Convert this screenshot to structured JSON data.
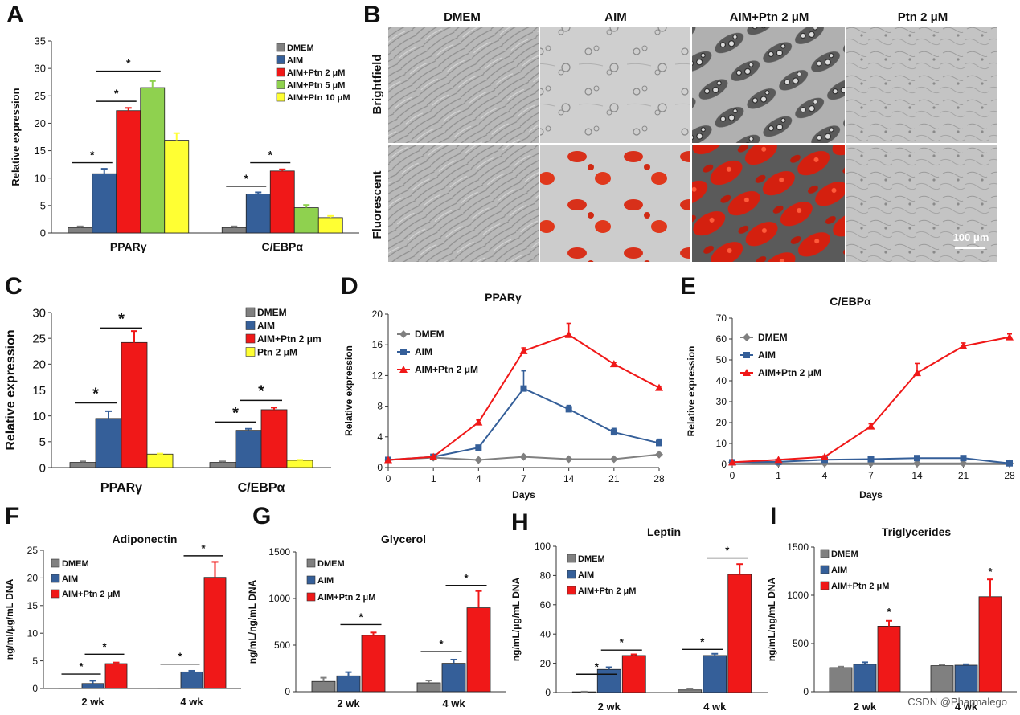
{
  "colors": {
    "DMEM": "#808080",
    "AIM": "#355f99",
    "AIM+Ptn 2": "#f01818",
    "AIM+Ptn 5": "#8fd14f",
    "AIM+Ptn 10": "#ffff33",
    "Ptn 2": "#ffff33"
  },
  "panel_B": {
    "letter": "B",
    "columns": [
      "DMEM",
      "AIM",
      "AIM+Ptn 2 μM",
      "Ptn 2 μM"
    ],
    "rows": [
      "Brightfield",
      "Fluorescent"
    ],
    "scale_bar": "100 μm"
  },
  "watermark": "CSDN @Pharmalego",
  "chart_data": [
    {
      "id": "A",
      "letter": "A",
      "type": "bar",
      "title": "",
      "xlabel": "",
      "ylabel": "Relative expression",
      "ylim": [
        0,
        35
      ],
      "yticks": [
        0,
        5,
        10,
        15,
        20,
        25,
        30,
        35
      ],
      "categories": [
        "PPARγ",
        "C/EBPα"
      ],
      "series": [
        {
          "name": "DMEM",
          "color_key": "DMEM",
          "values": [
            1,
            1
          ],
          "errors": [
            0.2,
            0.2
          ]
        },
        {
          "name": "AIM",
          "color_key": "AIM",
          "values": [
            10.8,
            7.1
          ],
          "errors": [
            0.9,
            0.3
          ]
        },
        {
          "name": "AIM+Ptn 2 μM",
          "color_key": "AIM+Ptn 2",
          "values": [
            22.3,
            11.3
          ],
          "errors": [
            0.5,
            0.3
          ]
        },
        {
          "name": "AIM+Ptn 5 μM",
          "color_key": "AIM+Ptn 5",
          "values": [
            26.5,
            4.6
          ],
          "errors": [
            1.2,
            0.5
          ]
        },
        {
          "name": "AIM+Ptn 10 μM",
          "color_key": "AIM+Ptn 10",
          "values": [
            16.9,
            2.8
          ],
          "errors": [
            1.3,
            0.3
          ]
        }
      ],
      "significance": [
        {
          "cat": 0,
          "from": 0,
          "to": 1,
          "y": 12.8
        },
        {
          "cat": 0,
          "from": 1,
          "to": 2,
          "y": 24.0
        },
        {
          "cat": 0,
          "from": 1,
          "to": 3,
          "y": 29.5
        },
        {
          "cat": 1,
          "from": 0,
          "to": 1,
          "y": 8.5
        },
        {
          "cat": 1,
          "from": 1,
          "to": 2,
          "y": 12.8
        }
      ],
      "legend": "top-right",
      "star_label": "*"
    },
    {
      "id": "C",
      "letter": "C",
      "type": "bar",
      "title": "",
      "xlabel": "",
      "ylabel": "Relative expression",
      "ylim": [
        0,
        30
      ],
      "yticks": [
        0,
        5,
        10,
        15,
        20,
        25,
        30
      ],
      "categories": [
        "PPARγ",
        "C/EBPα"
      ],
      "series": [
        {
          "name": "DMEM",
          "color_key": "DMEM",
          "values": [
            1,
            1
          ],
          "errors": [
            0.2,
            0.2
          ]
        },
        {
          "name": "AIM",
          "color_key": "AIM",
          "values": [
            9.5,
            7.2
          ],
          "errors": [
            1.4,
            0.3
          ]
        },
        {
          "name": "AIM+Ptn 2 μm",
          "color_key": "AIM+Ptn 2",
          "values": [
            24.2,
            11.2
          ],
          "errors": [
            2.2,
            0.4
          ]
        },
        {
          "name": "Ptn 2 μM",
          "color_key": "Ptn 2",
          "values": [
            2.6,
            1.4
          ],
          "errors": [
            0.1,
            0.1
          ]
        }
      ],
      "significance": [
        {
          "cat": 0,
          "from": 0,
          "to": 1,
          "y": 12.5
        },
        {
          "cat": 0,
          "from": 1,
          "to": 2,
          "y": 27.0
        },
        {
          "cat": 1,
          "from": 0,
          "to": 1,
          "y": 8.8
        },
        {
          "cat": 1,
          "from": 1,
          "to": 2,
          "y": 13.0
        }
      ],
      "legend": "top-right",
      "star_label": "*"
    },
    {
      "id": "D",
      "letter": "D",
      "type": "line",
      "title": "PPARγ",
      "xlabel": "Days",
      "ylabel": "Relative expression",
      "x": [
        "0",
        "1",
        "4",
        "7",
        "14",
        "21",
        "28"
      ],
      "ylim": [
        0,
        20
      ],
      "yticks": [
        0,
        4,
        8,
        12,
        16,
        20
      ],
      "series": [
        {
          "name": "DMEM",
          "color_key": "DMEM",
          "marker": "diamond",
          "values": [
            1,
            1.3,
            1.0,
            1.4,
            1.1,
            1.1,
            1.7
          ],
          "errors": [
            0,
            0,
            0,
            0,
            0,
            0,
            0
          ]
        },
        {
          "name": "AIM",
          "color_key": "AIM",
          "marker": "square",
          "values": [
            1,
            1.4,
            2.6,
            10.3,
            7.6,
            4.6,
            3.2
          ],
          "errors": [
            0,
            0,
            0.2,
            2.3,
            0.5,
            0.5,
            0.5
          ]
        },
        {
          "name": "AIM+Ptn 2 μM",
          "color_key": "AIM+Ptn 2",
          "marker": "triangle",
          "values": [
            1,
            1.4,
            5.9,
            15.2,
            17.3,
            13.5,
            10.4
          ],
          "errors": [
            0,
            0,
            0.3,
            0.4,
            1.5,
            0.2,
            0.2
          ]
        }
      ],
      "legend": "top-left"
    },
    {
      "id": "E",
      "letter": "E",
      "type": "line",
      "title": "C/EBPα",
      "xlabel": "Days",
      "ylabel": "Relative expression",
      "x": [
        "0",
        "1",
        "4",
        "7",
        "14",
        "21",
        "28"
      ],
      "ylim": [
        0,
        70
      ],
      "yticks": [
        0,
        10,
        20,
        30,
        40,
        50,
        60,
        70
      ],
      "series": [
        {
          "name": "DMEM",
          "color_key": "DMEM",
          "marker": "diamond",
          "values": [
            1,
            0.5,
            0.5,
            0.5,
            0.5,
            0.5,
            0.5
          ],
          "errors": [
            0,
            0,
            0,
            0,
            0,
            0,
            0
          ]
        },
        {
          "name": "AIM",
          "color_key": "AIM",
          "marker": "square",
          "values": [
            1,
            1.2,
            2.2,
            2.5,
            3.0,
            3.0,
            0.5
          ],
          "errors": [
            0,
            0,
            0,
            0,
            0,
            0,
            0
          ]
        },
        {
          "name": "AIM+Ptn 2 μM",
          "color_key": "AIM+Ptn 2",
          "marker": "triangle",
          "values": [
            1,
            2.2,
            3.6,
            18.2,
            43.8,
            56.6,
            60.9
          ],
          "errors": [
            0,
            0,
            0.5,
            1.2,
            4.5,
            1.5,
            1.5
          ]
        }
      ],
      "legend": "top-left"
    },
    {
      "id": "F",
      "letter": "F",
      "type": "bar",
      "title": "Adiponectin",
      "xlabel": "",
      "ylabel": "ng/ml/μg/mL DNA",
      "ylim": [
        0,
        25
      ],
      "yticks": [
        0,
        5,
        10,
        15,
        20,
        25
      ],
      "categories": [
        "2 wk",
        "4 wk"
      ],
      "series": [
        {
          "name": "DMEM",
          "color_key": "DMEM",
          "values": [
            0.05,
            0.05
          ],
          "errors": [
            0,
            0
          ]
        },
        {
          "name": "AIM",
          "color_key": "AIM",
          "values": [
            0.9,
            3.0
          ],
          "errors": [
            0.5,
            0.2
          ]
        },
        {
          "name": "AIM+Ptn 2 μM",
          "color_key": "AIM+Ptn 2",
          "values": [
            4.5,
            20.1
          ],
          "errors": [
            0.2,
            2.8
          ]
        }
      ],
      "significance": [
        {
          "cat": 0,
          "from": 0,
          "to": 1,
          "y": 2.6
        },
        {
          "cat": 0,
          "from": 1,
          "to": 2,
          "y": 6.2
        },
        {
          "cat": 1,
          "from": 0,
          "to": 1,
          "y": 4.4
        },
        {
          "cat": 1,
          "from": 1,
          "to": 2,
          "y": 24.0
        }
      ],
      "legend": "top-left",
      "star_label": "*"
    },
    {
      "id": "G",
      "letter": "G",
      "type": "bar",
      "title": "Glycerol",
      "xlabel": "",
      "ylabel": "ng/mL/ng/mL DNA",
      "ylim": [
        0,
        1500
      ],
      "yticks": [
        0,
        500,
        1000,
        1500
      ],
      "categories": [
        "2 wk",
        "4 wk"
      ],
      "series": [
        {
          "name": "DMEM",
          "color_key": "DMEM",
          "values": [
            110,
            95
          ],
          "errors": [
            40,
            25
          ]
        },
        {
          "name": "AIM",
          "color_key": "AIM",
          "values": [
            170,
            305
          ],
          "errors": [
            40,
            40
          ]
        },
        {
          "name": "AIM+Ptn 2 μM",
          "color_key": "AIM+Ptn 2",
          "values": [
            605,
            900
          ],
          "errors": [
            30,
            180
          ]
        }
      ],
      "significance": [
        {
          "cat": 0,
          "from": 1,
          "to": 2,
          "y": 720
        },
        {
          "cat": 1,
          "from": 0,
          "to": 1,
          "y": 430
        },
        {
          "cat": 1,
          "from": 1,
          "to": 2,
          "y": 1140
        }
      ],
      "legend": "top-left",
      "star_label": "*"
    },
    {
      "id": "H",
      "letter": "H",
      "type": "bar",
      "title": "Leptin",
      "xlabel": "",
      "ylabel": "ng/mL/μg/mL DNA",
      "ylim": [
        0,
        100
      ],
      "yticks": [
        0,
        20,
        40,
        60,
        80,
        100
      ],
      "categories": [
        "2 wk",
        "4 wk"
      ],
      "series": [
        {
          "name": "DMEM",
          "color_key": "DMEM",
          "values": [
            0.5,
            1.8
          ],
          "errors": [
            0.1,
            0.5
          ]
        },
        {
          "name": "AIM",
          "color_key": "AIM",
          "values": [
            15.8,
            25.3
          ],
          "errors": [
            1.5,
            1.2
          ]
        },
        {
          "name": "AIM+Ptn 2 μM",
          "color_key": "AIM+Ptn 2",
          "values": [
            25.3,
            80.8
          ],
          "errors": [
            0.8,
            7.0
          ]
        }
      ],
      "significance": [
        {
          "cat": 0,
          "from": 0,
          "to": 1,
          "y": 12.5
        },
        {
          "cat": 0,
          "from": 1,
          "to": 2,
          "y": 29.0
        },
        {
          "cat": 1,
          "from": 0,
          "to": 1,
          "y": 29.5
        },
        {
          "cat": 1,
          "from": 1,
          "to": 2,
          "y": 92.0
        }
      ],
      "legend": "top-left",
      "star_label": "*"
    },
    {
      "id": "I",
      "letter": "I",
      "type": "bar",
      "title": "Triglycerides",
      "xlabel": "",
      "ylabel": "ng/mL/ng/mL DNA",
      "ylim": [
        0,
        1500
      ],
      "yticks": [
        0,
        500,
        1000,
        1500
      ],
      "categories": [
        "2 wk",
        "4 wk"
      ],
      "series": [
        {
          "name": "DMEM",
          "color_key": "DMEM",
          "values": [
            250,
            270
          ],
          "errors": [
            10,
            10
          ]
        },
        {
          "name": "AIM",
          "color_key": "AIM",
          "values": [
            285,
            275
          ],
          "errors": [
            20,
            10
          ]
        },
        {
          "name": "AIM+Ptn 2 μM",
          "color_key": "AIM+Ptn 2",
          "values": [
            680,
            985
          ],
          "errors": [
            55,
            180
          ]
        }
      ],
      "significance_single": [
        {
          "cat": 0,
          "series": 2,
          "y": 790
        },
        {
          "cat": 1,
          "series": 2,
          "y": 1210
        }
      ],
      "legend": "top-left",
      "star_label": "*"
    }
  ]
}
